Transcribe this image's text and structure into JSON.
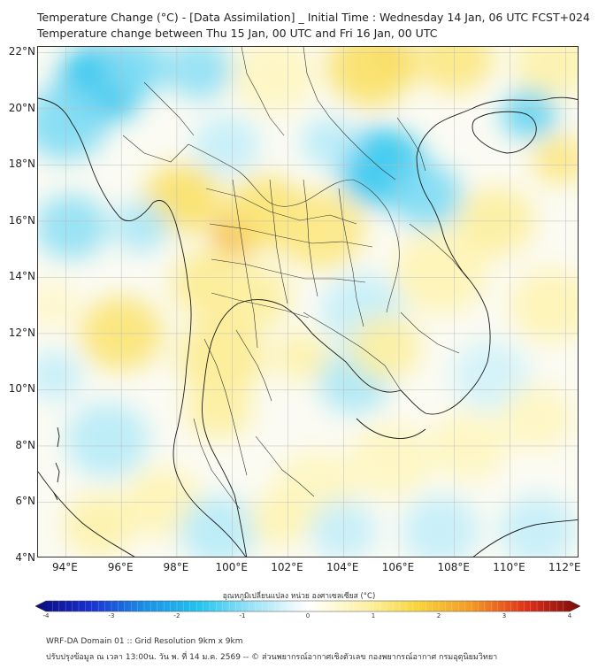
{
  "title_line1": "Temperature Change (°C) - [Data Assimilation] _ Initial Time : Wednesday 14 Jan, 06 UTC FCST+024",
  "title_line2": "Temperature change between Thu 15 Jan, 00 UTC and Fri 16 Jan, 00 UTC",
  "map": {
    "lon_range": [
      93,
      112.5
    ],
    "lat_range": [
      4,
      22.2
    ],
    "lat_ticks": [
      "4°N",
      "6°N",
      "8°N",
      "10°N",
      "12°N",
      "14°N",
      "16°N",
      "18°N",
      "20°N",
      "22°N"
    ],
    "lat_values": [
      4,
      6,
      8,
      10,
      12,
      14,
      16,
      18,
      20,
      22
    ],
    "lon_ticks": [
      "94°E",
      "96°E",
      "98°E",
      "100°E",
      "102°E",
      "104°E",
      "106°E",
      "108°E",
      "110°E",
      "112°E"
    ],
    "lon_values": [
      94,
      96,
      98,
      100,
      102,
      104,
      106,
      108,
      110,
      112
    ],
    "grid": true,
    "field": [
      {
        "lon": 95.3,
        "lat": 20.9,
        "value": -1.6,
        "r": 1.6
      },
      {
        "lon": 94.0,
        "lat": 19.5,
        "value": -1.0,
        "r": 1.5
      },
      {
        "lon": 96.5,
        "lat": 21.5,
        "value": -1.0,
        "r": 1.2
      },
      {
        "lon": 98.8,
        "lat": 21.4,
        "value": -0.9,
        "r": 1.2
      },
      {
        "lon": 101.5,
        "lat": 21.2,
        "value": 0.6,
        "r": 1.5
      },
      {
        "lon": 105.8,
        "lat": 21.9,
        "value": 2.4,
        "r": 0.7
      },
      {
        "lon": 105.0,
        "lat": 21.5,
        "value": 1.3,
        "r": 1.6
      },
      {
        "lon": 108.0,
        "lat": 21.8,
        "value": 1.1,
        "r": 1.4
      },
      {
        "lon": 111.5,
        "lat": 21.6,
        "value": 0.8,
        "r": 1.4
      },
      {
        "lon": 110.7,
        "lat": 19.8,
        "value": -1.2,
        "r": 1.0
      },
      {
        "lon": 111.8,
        "lat": 18.2,
        "value": 1.1,
        "r": 1.0
      },
      {
        "lon": 105.4,
        "lat": 17.9,
        "value": -1.5,
        "r": 1.6
      },
      {
        "lon": 107.0,
        "lat": 16.9,
        "value": -1.0,
        "r": 1.3
      },
      {
        "lon": 103.5,
        "lat": 18.8,
        "value": -0.6,
        "r": 1.0
      },
      {
        "lon": 99.8,
        "lat": 18.7,
        "value": -0.5,
        "r": 1.2
      },
      {
        "lon": 98.2,
        "lat": 16.8,
        "value": 1.3,
        "r": 1.4
      },
      {
        "lon": 100.2,
        "lat": 15.6,
        "value": 2.2,
        "r": 0.9
      },
      {
        "lon": 101.2,
        "lat": 16.3,
        "value": 1.2,
        "r": 1.5
      },
      {
        "lon": 103.2,
        "lat": 15.7,
        "value": 1.1,
        "r": 1.6
      },
      {
        "lon": 99.2,
        "lat": 13.8,
        "value": 1.0,
        "r": 1.4
      },
      {
        "lon": 100.8,
        "lat": 13.3,
        "value": 0.9,
        "r": 1.3
      },
      {
        "lon": 99.6,
        "lat": 11.2,
        "value": 1.0,
        "r": 1.6
      },
      {
        "lon": 99.5,
        "lat": 9.3,
        "value": 0.9,
        "r": 1.2
      },
      {
        "lon": 96.0,
        "lat": 12.0,
        "value": 1.2,
        "r": 1.5
      },
      {
        "lon": 94.2,
        "lat": 15.8,
        "value": -0.9,
        "r": 1.3
      },
      {
        "lon": 96.7,
        "lat": 15.8,
        "value": -0.7,
        "r": 1.0
      },
      {
        "lon": 104.7,
        "lat": 12.8,
        "value": -0.5,
        "r": 1.5
      },
      {
        "lon": 104.4,
        "lat": 10.3,
        "value": -0.7,
        "r": 1.3
      },
      {
        "lon": 105.5,
        "lat": 11.5,
        "value": 0.9,
        "r": 1.3
      },
      {
        "lon": 102.5,
        "lat": 11.2,
        "value": 0.8,
        "r": 1.0
      },
      {
        "lon": 107.5,
        "lat": 14.2,
        "value": 0.7,
        "r": 1.7
      },
      {
        "lon": 109.5,
        "lat": 16.0,
        "value": 0.9,
        "r": 1.4
      },
      {
        "lon": 111.5,
        "lat": 13.0,
        "value": 0.7,
        "r": 1.5
      },
      {
        "lon": 109.3,
        "lat": 10.5,
        "value": -0.4,
        "r": 1.4
      },
      {
        "lon": 108.5,
        "lat": 8.0,
        "value": 0.6,
        "r": 1.4
      },
      {
        "lon": 105.7,
        "lat": 7.5,
        "value": 0.6,
        "r": 1.5
      },
      {
        "lon": 103.0,
        "lat": 6.5,
        "value": 0.6,
        "r": 1.5
      },
      {
        "lon": 95.5,
        "lat": 8.2,
        "value": -0.6,
        "r": 1.5
      },
      {
        "lon": 97.5,
        "lat": 6.0,
        "value": 0.7,
        "r": 1.4
      },
      {
        "lon": 95.2,
        "lat": 5.2,
        "value": 0.8,
        "r": 1.3
      },
      {
        "lon": 99.5,
        "lat": 5.0,
        "value": -0.6,
        "r": 1.4
      },
      {
        "lon": 101.7,
        "lat": 5.4,
        "value": 0.7,
        "r": 1.1
      },
      {
        "lon": 104.0,
        "lat": 5.0,
        "value": -0.5,
        "r": 1.2
      },
      {
        "lon": 107.5,
        "lat": 5.0,
        "value": -0.5,
        "r": 1.4
      },
      {
        "lon": 111.0,
        "lat": 5.0,
        "value": -0.5,
        "r": 1.4
      },
      {
        "lon": 111.0,
        "lat": 9.0,
        "value": 0.6,
        "r": 1.3
      },
      {
        "lon": 93.6,
        "lat": 10.5,
        "value": -0.5,
        "r": 1.0
      },
      {
        "lon": 93.5,
        "lat": 13.0,
        "value": 0.5,
        "r": 1.0
      }
    ]
  },
  "colorbar": {
    "title": "อุณหภูมิเปลี่ยนแปลง หน่วย องศาเซลเซียส (°C)",
    "ticks": [
      "-4",
      "-3",
      "-2",
      "-1",
      "0",
      "1",
      "2",
      "3",
      "4"
    ],
    "tick_values": [
      -4,
      -3,
      -2,
      -1,
      0,
      1,
      2,
      3,
      4
    ],
    "range": [
      -4,
      4
    ],
    "stops": [
      {
        "v": -4.0,
        "c": "#0a0a7a"
      },
      {
        "v": -3.2,
        "c": "#1a2fd0"
      },
      {
        "v": -2.4,
        "c": "#1b8fe6"
      },
      {
        "v": -1.6,
        "c": "#22c4ee"
      },
      {
        "v": -0.9,
        "c": "#8fe0f5"
      },
      {
        "v": -0.3,
        "c": "#dff5fb"
      },
      {
        "v": 0.0,
        "c": "#ffffff"
      },
      {
        "v": 0.3,
        "c": "#fffbe0"
      },
      {
        "v": 0.9,
        "c": "#fdf0a0"
      },
      {
        "v": 1.6,
        "c": "#f8d53c"
      },
      {
        "v": 2.4,
        "c": "#f39a24"
      },
      {
        "v": 3.2,
        "c": "#e0311a"
      },
      {
        "v": 4.0,
        "c": "#7a0a0a"
      }
    ]
  },
  "footer_line1": "WRF-DA Domain 01 :: Grid Resolution 9km x 9km",
  "footer_line2": "ปรับปรุงข้อมูล ณ เวลา 13:00น. วัน พ. ที่ 14 ม.ค. 2569 -- © ส่วนพยากรณ์อากาศเชิงตัวเลข กองพยากรณ์อากาศ กรมอุตุนิยมวิทยา"
}
